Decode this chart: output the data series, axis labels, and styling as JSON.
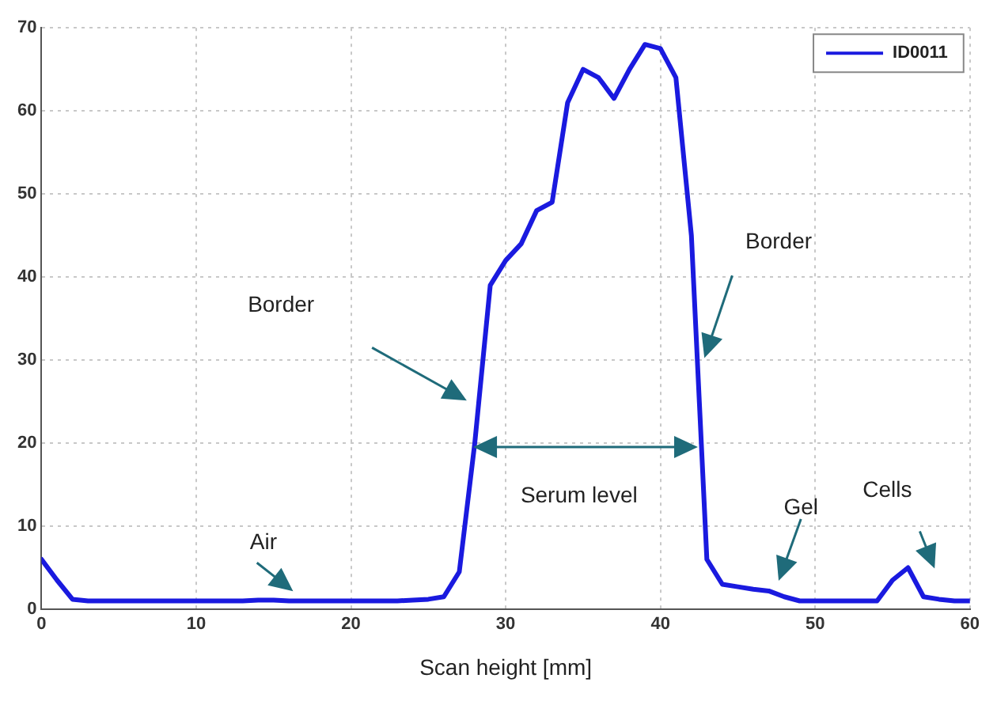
{
  "chart_data": {
    "type": "line",
    "xlabel": "Scan height [mm]",
    "x": [
      0,
      1,
      2,
      3,
      4,
      5,
      6,
      7,
      8,
      9,
      10,
      11,
      12,
      13,
      14,
      15,
      16,
      17,
      18,
      19,
      20,
      21,
      22,
      23,
      24,
      25,
      26,
      27,
      28,
      29,
      30,
      31,
      32,
      33,
      34,
      35,
      36,
      37,
      38,
      39,
      40,
      41,
      42,
      43,
      44,
      45,
      46,
      47,
      48,
      49,
      50,
      51,
      52,
      53,
      54,
      55,
      56,
      57,
      58,
      59,
      60
    ],
    "series": [
      {
        "name": "ID0011",
        "color": "#1a1adf",
        "values": [
          6,
          3.5,
          1.2,
          1,
          1,
          1,
          1,
          1,
          1,
          1,
          1,
          1,
          1,
          1,
          1.1,
          1.1,
          1,
          1,
          1,
          1,
          1,
          1,
          1,
          1,
          1.1,
          1.2,
          1.5,
          4.5,
          20,
          39,
          42,
          44,
          48,
          49,
          61,
          65,
          64,
          61.5,
          65,
          68,
          67.5,
          64,
          45,
          6,
          3,
          2.7,
          2.4,
          2.2,
          1.5,
          1,
          1,
          1,
          1,
          1,
          1,
          3.5,
          5,
          1.5,
          1.2,
          1,
          1
        ]
      }
    ],
    "xlim": [
      0,
      60
    ],
    "xticks": [
      0,
      10,
      20,
      30,
      40,
      50,
      60
    ],
    "ylim": [
      0,
      70
    ],
    "yticks": [
      0,
      10,
      20,
      30,
      40,
      50,
      60,
      70
    ],
    "grid": true,
    "legend": "top right",
    "marker": "none",
    "line_style": "solid",
    "annotations": [
      "Border",
      "Border",
      "Serum level",
      "Air",
      "Gel",
      "Cells"
    ]
  }
}
